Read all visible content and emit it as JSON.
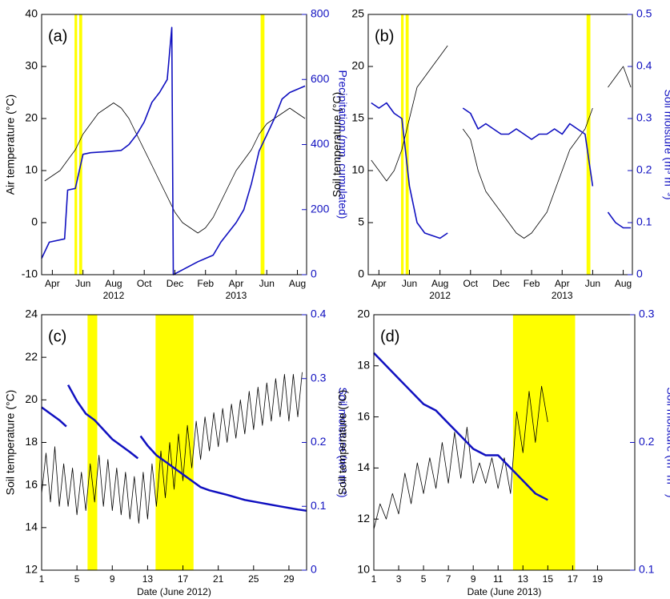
{
  "chart_data": [
    {
      "type": "line",
      "label": "(a)",
      "ylabel": "Air temperature (°C)",
      "y2label": "Precipitation (mm, cumulated)",
      "xlim": [
        3.3,
        20.6
      ],
      "xticks": [
        {
          "value": 4,
          "label": "Apr"
        },
        {
          "value": 6,
          "label": "Jun"
        },
        {
          "value": 8,
          "label": "Aug"
        },
        {
          "value": 10,
          "label": "Oct"
        },
        {
          "value": 12,
          "label": "Dec"
        },
        {
          "value": 14,
          "label": "Feb"
        },
        {
          "value": 16,
          "label": "Apr"
        },
        {
          "value": 18,
          "label": "Jun"
        },
        {
          "value": 20,
          "label": "Aug"
        }
      ],
      "year_labels": [
        {
          "value": 8,
          "label": "2012"
        },
        {
          "value": 16,
          "label": "2013"
        }
      ],
      "ylim": [
        -10,
        40
      ],
      "yticks": [
        -10,
        0,
        10,
        20,
        30,
        40
      ],
      "y2lim": [
        0,
        800
      ],
      "y2ticks": [
        0,
        200,
        400,
        600,
        800
      ],
      "shaded_periods": [
        [
          5.45,
          5.62
        ],
        [
          5.75,
          5.95
        ],
        [
          17.6,
          17.85
        ]
      ],
      "shade_color": "#ffff00",
      "x": [
        3.5,
        4,
        4.5,
        5,
        5.5,
        6,
        6.5,
        7,
        7.5,
        8,
        8.5,
        9,
        9.5,
        10,
        10.5,
        11,
        11.5,
        12,
        12.5,
        13,
        13.5,
        14,
        14.5,
        15,
        15.5,
        16,
        16.5,
        17,
        17.5,
        18,
        18.5,
        19,
        19.5,
        20,
        20.5
      ],
      "series": [
        {
          "name": "Air temperature",
          "color": "#000000",
          "values": [
            8,
            9,
            10,
            12,
            14,
            17,
            19,
            21,
            22,
            23,
            22,
            20,
            17,
            14,
            11,
            8,
            5,
            2,
            0,
            -1,
            -2,
            -1,
            1,
            4,
            7,
            10,
            12,
            14,
            17,
            19,
            20,
            21,
            22,
            21,
            20
          ]
        },
        {
          "name": "Precipitation",
          "color": "#1010c0",
          "axis": "y2",
          "x": [
            3.3,
            3.8,
            4.8,
            5.0,
            5.5,
            6.0,
            6.5,
            7.5,
            8.5,
            9.0,
            9.5,
            10.0,
            10.5,
            11.0,
            11.5,
            11.8,
            11.9,
            12.5,
            13.5,
            14.5,
            15.0,
            15.5,
            16.0,
            16.5,
            17.0,
            17.5,
            18.0,
            18.5,
            19.0,
            19.5,
            20.5
          ],
          "values": [
            50,
            100,
            110,
            260,
            265,
            370,
            375,
            378,
            382,
            400,
            430,
            470,
            530,
            560,
            600,
            760,
            0,
            15,
            40,
            60,
            100,
            130,
            160,
            200,
            280,
            380,
            430,
            480,
            540,
            560,
            580
          ]
        }
      ]
    },
    {
      "type": "line",
      "label": "(b)",
      "ylabel": "Soil temperature (°C)",
      "y2label": "Soil moisture (m³ m⁻³)",
      "xlim": [
        3.3,
        20.6
      ],
      "xticks": [
        {
          "value": 4,
          "label": "Apr"
        },
        {
          "value": 6,
          "label": "Jun"
        },
        {
          "value": 8,
          "label": "Aug"
        },
        {
          "value": 10,
          "label": "Oct"
        },
        {
          "value": 12,
          "label": "Dec"
        },
        {
          "value": 14,
          "label": "Feb"
        },
        {
          "value": 16,
          "label": "Apr"
        },
        {
          "value": 18,
          "label": "Jun"
        },
        {
          "value": 20,
          "label": "Aug"
        }
      ],
      "year_labels": [
        {
          "value": 8,
          "label": "2012"
        },
        {
          "value": 16,
          "label": "2013"
        }
      ],
      "ylim": [
        0,
        25
      ],
      "yticks": [
        0,
        5,
        10,
        15,
        20,
        25
      ],
      "y2lim": [
        0,
        0.5
      ],
      "y2ticks": [
        0,
        0.1,
        0.2,
        0.3,
        0.4,
        0.5
      ],
      "shaded_periods": [
        [
          5.45,
          5.62
        ],
        [
          5.75,
          5.95
        ],
        [
          17.6,
          17.85
        ]
      ],
      "shade_color": "#ffff00",
      "x": [
        3.5,
        4,
        4.5,
        5,
        5.5,
        6,
        6.5,
        7,
        7.5,
        8,
        8.5,
        9,
        9.5,
        10,
        10.5,
        11,
        11.5,
        12,
        12.5,
        13,
        13.5,
        14,
        14.5,
        15,
        15.5,
        16,
        16.5,
        17,
        17.5,
        18,
        18.5,
        19,
        19.5,
        20,
        20.5
      ],
      "series": [
        {
          "name": "Soil temperature",
          "color": "#000000",
          "values": [
            11,
            10,
            9,
            10,
            12,
            15,
            18,
            19,
            20,
            21,
            22,
            null,
            14,
            13,
            10,
            8,
            7,
            6,
            5,
            4,
            3.5,
            4,
            5,
            6,
            8,
            10,
            12,
            13,
            14,
            16,
            null,
            18,
            19,
            20,
            18
          ]
        },
        {
          "name": "Soil moisture",
          "color": "#1010c0",
          "axis": "y2",
          "values": [
            0.33,
            0.32,
            0.33,
            0.31,
            0.3,
            0.17,
            0.1,
            0.08,
            0.075,
            0.07,
            0.08,
            null,
            0.32,
            0.31,
            0.28,
            0.29,
            0.28,
            0.27,
            0.27,
            0.28,
            0.27,
            0.26,
            0.27,
            0.27,
            0.28,
            0.27,
            0.29,
            0.28,
            0.27,
            0.17,
            null,
            0.12,
            0.1,
            0.09,
            0.09
          ]
        }
      ]
    },
    {
      "type": "line",
      "label": "(c)",
      "ylabel": "Soil temperature (°C)",
      "y2label": "Soil moisture (m³ m⁻³)",
      "xlabel": "Date (June 2012)",
      "xlim": [
        1,
        31
      ],
      "xticks": [
        1,
        5,
        9,
        13,
        17,
        21,
        25,
        29
      ],
      "ylim": [
        12,
        24
      ],
      "yticks": [
        12,
        14,
        16,
        18,
        20,
        22,
        24
      ],
      "y2lim": [
        0,
        0.4
      ],
      "y2ticks": [
        0,
        0.1,
        0.2,
        0.3,
        0.4
      ],
      "shaded_periods": [
        [
          6.2,
          7.3
        ],
        [
          13.9,
          18.2
        ]
      ],
      "shade_color": "#ffff00",
      "x": [
        1,
        1.5,
        2,
        2.5,
        3,
        3.5,
        4,
        4.5,
        5,
        5.5,
        6,
        6.5,
        7,
        7.5,
        8,
        8.5,
        9,
        9.5,
        10,
        10.5,
        11,
        11.5,
        12,
        12.5,
        13,
        13.5,
        14,
        14.5,
        15,
        15.5,
        16,
        16.5,
        17,
        17.5,
        18,
        18.5,
        19,
        19.5,
        20,
        20.5,
        21,
        21.5,
        22,
        22.5,
        23,
        23.5,
        24,
        24.5,
        25,
        25.5,
        26,
        26.5,
        27,
        27.5,
        28,
        28.5,
        29,
        29.5,
        30,
        30.5
      ],
      "series": [
        {
          "name": "Soil temperature",
          "color": "#000000",
          "values": [
            15.6,
            17.5,
            15.2,
            17.8,
            15.0,
            17.0,
            15.0,
            16.8,
            14.6,
            16.6,
            14.8,
            17.0,
            15.2,
            17.4,
            15.0,
            17.2,
            14.8,
            16.8,
            14.6,
            16.6,
            14.4,
            16.4,
            14.2,
            16.6,
            14.4,
            17.0,
            15.0,
            17.6,
            15.4,
            18.0,
            15.8,
            18.4,
            16.2,
            18.8,
            16.8,
            19.0,
            17.2,
            19.2,
            17.6,
            19.4,
            17.8,
            19.6,
            18.0,
            19.8,
            18.2,
            20.0,
            18.4,
            20.4,
            18.6,
            20.6,
            18.8,
            20.8,
            19.0,
            21.0,
            19.2,
            21.2,
            19.0,
            21.2,
            19.2,
            21.3
          ]
        },
        {
          "name": "Soil moisture",
          "color": "#1010c0",
          "axis": "y2",
          "x": [
            1,
            2,
            3,
            3.8,
            3.9,
            4,
            5,
            6,
            7,
            8,
            9,
            10,
            11,
            11.9,
            12,
            12.2,
            13,
            14,
            15,
            16,
            17,
            18,
            19,
            20,
            22,
            24,
            26,
            28,
            30,
            31
          ],
          "values": [
            0.255,
            0.245,
            0.235,
            0.225,
            null,
            0.29,
            0.265,
            0.245,
            0.235,
            0.22,
            0.205,
            0.195,
            0.185,
            0.175,
            null,
            0.21,
            0.195,
            0.18,
            0.17,
            0.16,
            0.15,
            0.14,
            0.13,
            0.125,
            0.118,
            0.11,
            0.105,
            0.1,
            0.095,
            0.093
          ]
        }
      ]
    },
    {
      "type": "line",
      "label": "(d)",
      "ylabel": "Soil temperature (°C)",
      "y2label": "Soil moisture (m³ m⁻³)",
      "xlabel": "Date (June 2013)",
      "xlim": [
        1,
        22
      ],
      "xticks": [
        1,
        3,
        5,
        7,
        9,
        11,
        13,
        15,
        17,
        19
      ],
      "ylim": [
        10,
        20
      ],
      "yticks": [
        10,
        12,
        14,
        16,
        18,
        20
      ],
      "y2lim": [
        0.1,
        0.3
      ],
      "y2ticks": [
        0.1,
        0.2,
        0.3
      ],
      "shaded_periods": [
        [
          12.2,
          17.2
        ]
      ],
      "shade_color": "#ffff00",
      "x": [
        1,
        1.5,
        2,
        2.5,
        3,
        3.5,
        4,
        4.5,
        5,
        5.5,
        6,
        6.5,
        7,
        7.5,
        8,
        8.5,
        9,
        9.5,
        10,
        10.5,
        11,
        11.5,
        12,
        12.5,
        13,
        13.5,
        14,
        14.5,
        15
      ],
      "series": [
        {
          "name": "Soil temperature",
          "color": "#000000",
          "values": [
            11.6,
            12.6,
            12.0,
            13.0,
            12.2,
            13.8,
            12.6,
            14.2,
            13.0,
            14.4,
            13.2,
            15.0,
            13.4,
            15.4,
            13.6,
            15.6,
            13.4,
            14.2,
            13.4,
            14.4,
            13.2,
            14.4,
            13.0,
            16.2,
            14.6,
            17.0,
            15.0,
            17.2,
            15.8
          ]
        },
        {
          "name": "Soil moisture",
          "color": "#1010c0",
          "axis": "y2",
          "x": [
            1,
            2,
            3,
            4,
            5,
            6,
            7,
            8,
            9,
            10,
            11,
            12,
            13,
            14,
            15
          ],
          "values": [
            0.27,
            0.26,
            0.25,
            0.24,
            0.23,
            0.225,
            0.215,
            0.205,
            0.195,
            0.19,
            0.19,
            0.18,
            0.17,
            0.16,
            0.155
          ]
        }
      ]
    }
  ]
}
